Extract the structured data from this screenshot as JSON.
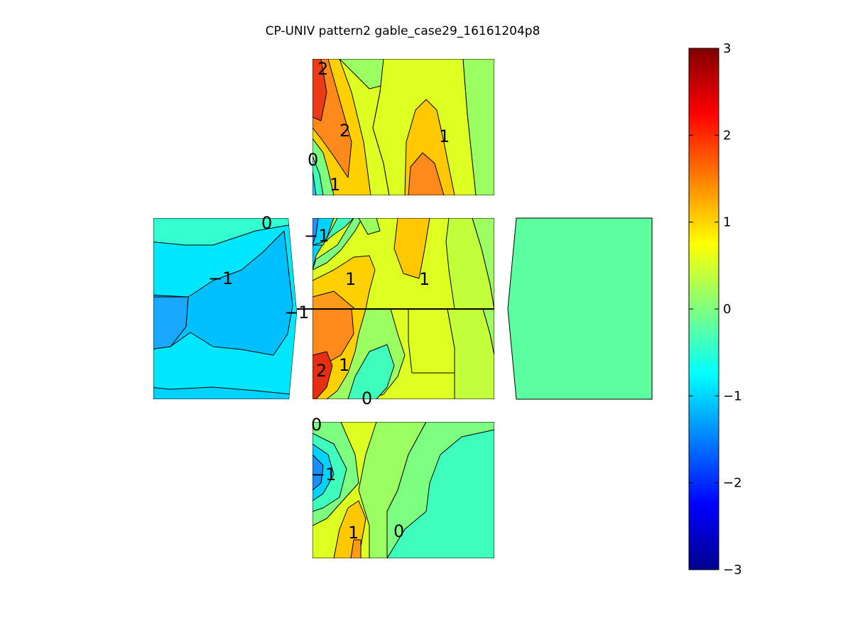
{
  "chart_data": {
    "type": "heatmap",
    "title": "CP-UNIV pattern2 gable_case29_16161204p8",
    "colormap": "jet",
    "colorbar": {
      "clim": [
        -3,
        3
      ],
      "ticks": [
        3,
        2,
        1,
        0,
        -1,
        -2,
        -3
      ],
      "tick_labels": [
        "3",
        "2",
        "1",
        "0",
        "−1",
        "−2",
        "−3"
      ],
      "location": "right"
    },
    "panels": [
      {
        "name": "top-face",
        "contour_labels": [
          "2",
          "2",
          "1",
          "0",
          "1"
        ]
      },
      {
        "name": "left-face",
        "contour_labels": [
          "0",
          "−1",
          "−1"
        ]
      },
      {
        "name": "center-upper-face",
        "contour_labels": [
          "−1",
          "1",
          "1"
        ]
      },
      {
        "name": "center-lower-face",
        "contour_labels": [
          "2",
          "1",
          "0"
        ]
      },
      {
        "name": "right-face",
        "contour_labels": []
      },
      {
        "name": "bottom-face",
        "contour_labels": [
          "0",
          "−1",
          "1",
          "0"
        ]
      }
    ]
  }
}
